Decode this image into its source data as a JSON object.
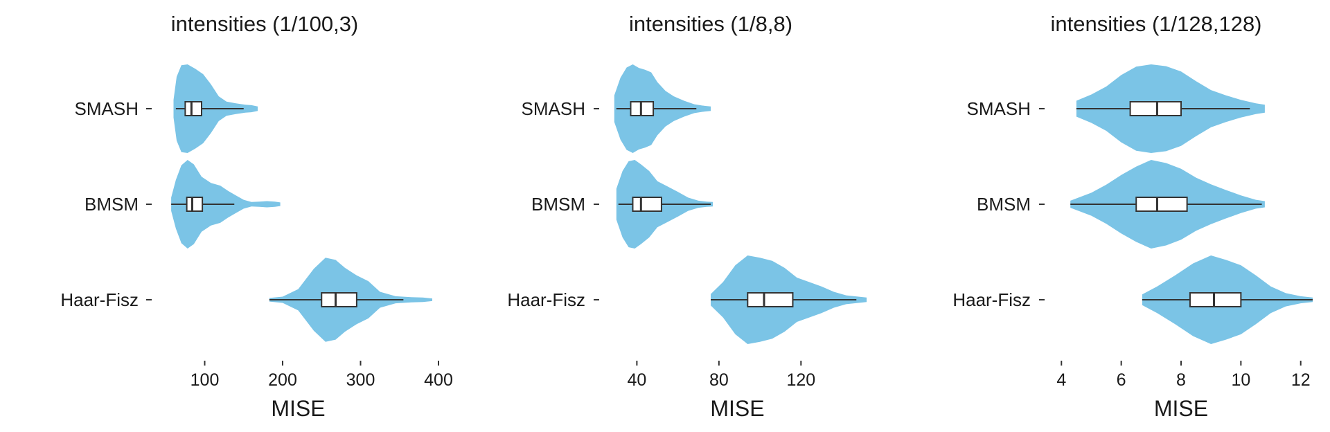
{
  "chart_data": [
    {
      "type": "violin",
      "title": "intensities (1/100,3)",
      "xlabel": "MISE",
      "ylabel": "",
      "xlim": [
        40,
        400
      ],
      "xticks": [
        100,
        200,
        300,
        400
      ],
      "tick_labels": [
        "100",
        "200",
        "300",
        "400"
      ],
      "categories": [
        "SMASH",
        "BMSM",
        "Haar-Fisz"
      ],
      "fill_color": "#7bc4e6",
      "series": [
        {
          "category": "SMASH",
          "violin_range": [
            60,
            168
          ],
          "density": [
            [
              60,
              0.2
            ],
            [
              64,
              0.72
            ],
            [
              70,
              0.98
            ],
            [
              78,
              1.0
            ],
            [
              88,
              0.9
            ],
            [
              98,
              0.78
            ],
            [
              108,
              0.55
            ],
            [
              118,
              0.28
            ],
            [
              128,
              0.16
            ],
            [
              140,
              0.12
            ],
            [
              152,
              0.09
            ],
            [
              160,
              0.08
            ],
            [
              168,
              0.05
            ]
          ],
          "box": {
            "min": 63,
            "q1": 75,
            "median": 83,
            "q3": 96,
            "max": 150
          }
        },
        {
          "category": "BMSM",
          "violin_range": [
            57,
            197
          ],
          "density": [
            [
              57,
              0.15
            ],
            [
              63,
              0.55
            ],
            [
              70,
              0.88
            ],
            [
              78,
              1.0
            ],
            [
              86,
              0.9
            ],
            [
              96,
              0.62
            ],
            [
              108,
              0.48
            ],
            [
              120,
              0.42
            ],
            [
              130,
              0.3
            ],
            [
              140,
              0.2
            ],
            [
              150,
              0.1
            ],
            [
              160,
              0.05
            ],
            [
              170,
              0.06
            ],
            [
              180,
              0.07
            ],
            [
              190,
              0.06
            ],
            [
              197,
              0.04
            ]
          ],
          "box": {
            "min": 57,
            "q1": 77,
            "median": 84,
            "q3": 97,
            "max": 138
          }
        },
        {
          "category": "Haar-Fisz",
          "violin_range": [
            183,
            392
          ],
          "density": [
            [
              183,
              0.04
            ],
            [
              200,
              0.07
            ],
            [
              220,
              0.24
            ],
            [
              240,
              0.7
            ],
            [
              255,
              0.95
            ],
            [
              268,
              0.9
            ],
            [
              280,
              0.72
            ],
            [
              295,
              0.55
            ],
            [
              310,
              0.42
            ],
            [
              325,
              0.18
            ],
            [
              345,
              0.08
            ],
            [
              365,
              0.06
            ],
            [
              380,
              0.05
            ],
            [
              392,
              0.03
            ]
          ],
          "box": {
            "min": 183,
            "q1": 250,
            "median": 268,
            "q3": 295,
            "max": 355
          }
        }
      ]
    },
    {
      "type": "violin",
      "title": "intensities (1/8,8)",
      "xlabel": "MISE",
      "ylabel": "",
      "xlim": [
        24,
        154
      ],
      "xticks": [
        40,
        80,
        120
      ],
      "tick_labels": [
        "40",
        "80",
        "120"
      ],
      "categories": [
        "SMASH",
        "BMSM",
        "Haar-Fisz"
      ],
      "fill_color": "#7bc4e6",
      "series": [
        {
          "category": "SMASH",
          "violin_range": [
            29,
            76
          ],
          "density": [
            [
              29,
              0.3
            ],
            [
              32,
              0.7
            ],
            [
              35,
              0.93
            ],
            [
              38,
              1.0
            ],
            [
              41,
              0.92
            ],
            [
              44,
              0.88
            ],
            [
              47,
              0.82
            ],
            [
              50,
              0.6
            ],
            [
              54,
              0.4
            ],
            [
              58,
              0.28
            ],
            [
              63,
              0.18
            ],
            [
              68,
              0.1
            ],
            [
              72,
              0.07
            ],
            [
              76,
              0.05
            ]
          ],
          "box": {
            "min": 30,
            "q1": 37,
            "median": 42,
            "q3": 48,
            "max": 69
          }
        },
        {
          "category": "BMSM",
          "violin_range": [
            30,
            77
          ],
          "density": [
            [
              30,
              0.35
            ],
            [
              33,
              0.75
            ],
            [
              36,
              0.97
            ],
            [
              39,
              1.0
            ],
            [
              42,
              0.9
            ],
            [
              46,
              0.75
            ],
            [
              50,
              0.52
            ],
            [
              55,
              0.4
            ],
            [
              60,
              0.28
            ],
            [
              65,
              0.15
            ],
            [
              70,
              0.08
            ],
            [
              74,
              0.06
            ],
            [
              77,
              0.05
            ]
          ],
          "box": {
            "min": 31,
            "q1": 38,
            "median": 42,
            "q3": 52,
            "max": 76
          }
        },
        {
          "category": "Haar-Fisz",
          "violin_range": [
            76,
            152
          ],
          "density": [
            [
              76,
              0.13
            ],
            [
              82,
              0.4
            ],
            [
              88,
              0.78
            ],
            [
              94,
              1.0
            ],
            [
              100,
              0.95
            ],
            [
              106,
              0.88
            ],
            [
              112,
              0.72
            ],
            [
              118,
              0.5
            ],
            [
              124,
              0.4
            ],
            [
              130,
              0.3
            ],
            [
              136,
              0.18
            ],
            [
              142,
              0.1
            ],
            [
              148,
              0.07
            ],
            [
              152,
              0.05
            ]
          ],
          "box": {
            "min": 76,
            "q1": 94,
            "median": 102,
            "q3": 116,
            "max": 147
          }
        }
      ]
    },
    {
      "type": "violin",
      "title": "intensities (1/128,128)",
      "xlabel": "MISE",
      "ylabel": "",
      "xlim": [
        3.6,
        12.4
      ],
      "xticks": [
        4,
        6,
        8,
        10,
        12
      ],
      "tick_labels": [
        "4",
        "6",
        "8",
        "10",
        "12"
      ],
      "categories": [
        "SMASH",
        "BMSM",
        "Haar-Fisz"
      ],
      "fill_color": "#7bc4e6",
      "series": [
        {
          "category": "SMASH",
          "violin_range": [
            4.5,
            10.8
          ],
          "density": [
            [
              4.5,
              0.18
            ],
            [
              5.0,
              0.32
            ],
            [
              5.5,
              0.5
            ],
            [
              6.0,
              0.76
            ],
            [
              6.5,
              0.95
            ],
            [
              7.0,
              1.0
            ],
            [
              7.5,
              0.96
            ],
            [
              8.0,
              0.84
            ],
            [
              8.5,
              0.62
            ],
            [
              9.0,
              0.42
            ],
            [
              9.5,
              0.3
            ],
            [
              10.0,
              0.2
            ],
            [
              10.5,
              0.12
            ],
            [
              10.8,
              0.09
            ]
          ],
          "box": {
            "min": 4.5,
            "q1": 6.3,
            "median": 7.2,
            "q3": 8.0,
            "max": 10.3
          }
        },
        {
          "category": "BMSM",
          "violin_range": [
            4.3,
            10.8
          ],
          "density": [
            [
              4.3,
              0.08
            ],
            [
              5.0,
              0.26
            ],
            [
              5.5,
              0.44
            ],
            [
              6.0,
              0.66
            ],
            [
              6.5,
              0.85
            ],
            [
              7.0,
              1.0
            ],
            [
              7.5,
              0.93
            ],
            [
              8.0,
              0.8
            ],
            [
              8.5,
              0.6
            ],
            [
              9.0,
              0.45
            ],
            [
              9.5,
              0.32
            ],
            [
              10.0,
              0.2
            ],
            [
              10.5,
              0.1
            ],
            [
              10.8,
              0.07
            ]
          ],
          "box": {
            "min": 4.3,
            "q1": 6.5,
            "median": 7.2,
            "q3": 8.2,
            "max": 10.7
          }
        },
        {
          "category": "Haar-Fisz",
          "violin_range": [
            6.7,
            12.4
          ],
          "density": [
            [
              6.7,
              0.12
            ],
            [
              7.2,
              0.3
            ],
            [
              7.8,
              0.55
            ],
            [
              8.4,
              0.82
            ],
            [
              9.0,
              1.0
            ],
            [
              9.5,
              0.9
            ],
            [
              10.0,
              0.78
            ],
            [
              10.5,
              0.55
            ],
            [
              11.0,
              0.3
            ],
            [
              11.5,
              0.15
            ],
            [
              12.0,
              0.08
            ],
            [
              12.4,
              0.05
            ]
          ],
          "box": {
            "min": 6.7,
            "q1": 8.3,
            "median": 9.1,
            "q3": 10.0,
            "max": 12.4
          }
        }
      ]
    }
  ]
}
